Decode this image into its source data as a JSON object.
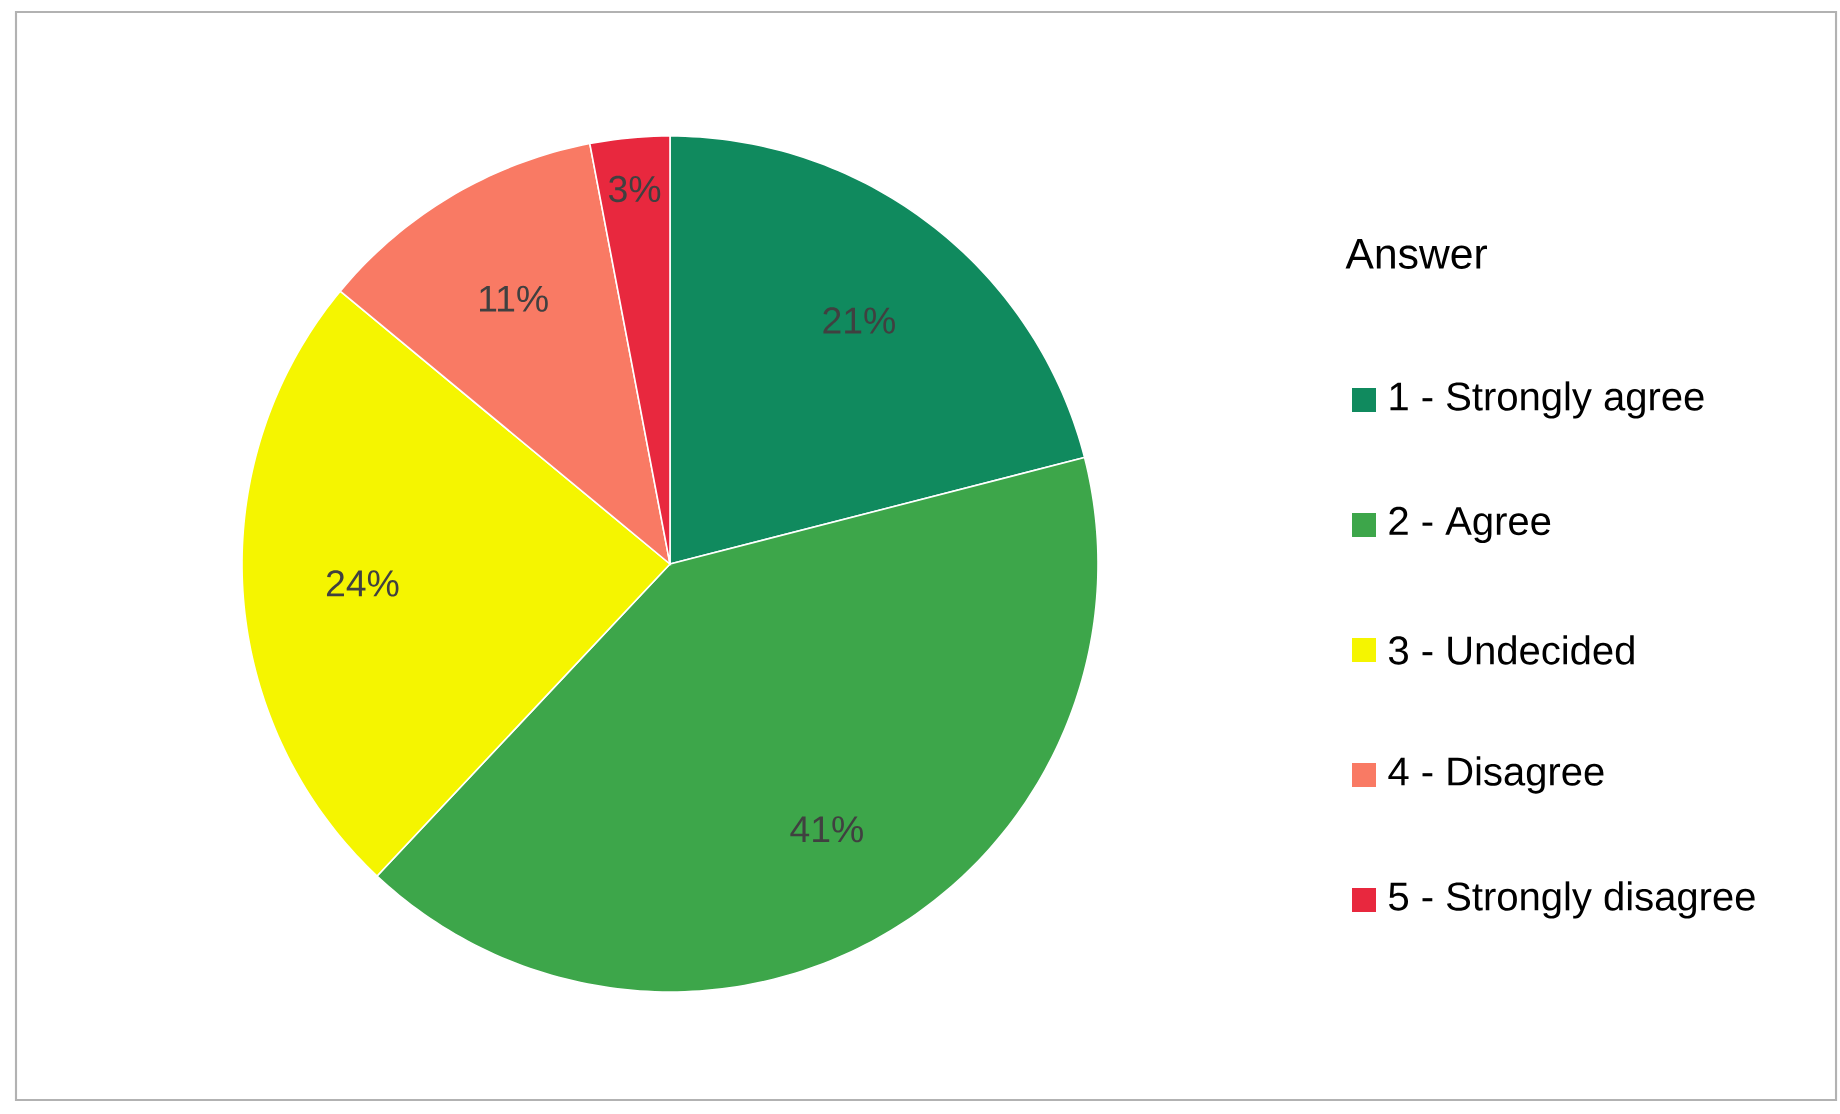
{
  "chart_data": {
    "type": "pie",
    "legend_title": "Answer",
    "legend": "right",
    "value_labels": [
      "21%",
      "41%",
      "24%",
      "11%",
      "3%"
    ],
    "categories": [
      "1 - Strongly agree",
      "2 - Agree",
      "3 - Undecided",
      "4 - Disagree",
      "5 - Strongly disagree"
    ],
    "values": [
      21,
      41,
      24,
      11,
      3
    ],
    "colors": [
      "#108a5e",
      "#3da64a",
      "#f5f500",
      "#f97a64",
      "#e8283e"
    ]
  }
}
